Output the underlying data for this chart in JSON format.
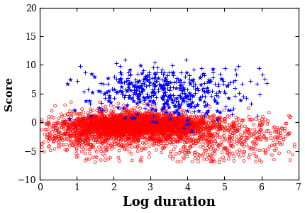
{
  "title": "",
  "xlabel": "Log duration",
  "ylabel": "Score",
  "xlim": [
    0,
    7
  ],
  "ylim": [
    -10,
    20
  ],
  "xticks": [
    0,
    1,
    2,
    3,
    4,
    5,
    6,
    7
  ],
  "yticks": [
    -10,
    -5,
    0,
    5,
    10,
    15,
    20
  ],
  "red_n": 4000,
  "blue_plus_n": 250,
  "blue_star_n": 180,
  "red_color": "#ff0000",
  "blue_color": "#0000ff",
  "seed": 42,
  "xlabel_fontsize": 13,
  "ylabel_fontsize": 11,
  "tick_fontsize": 9
}
